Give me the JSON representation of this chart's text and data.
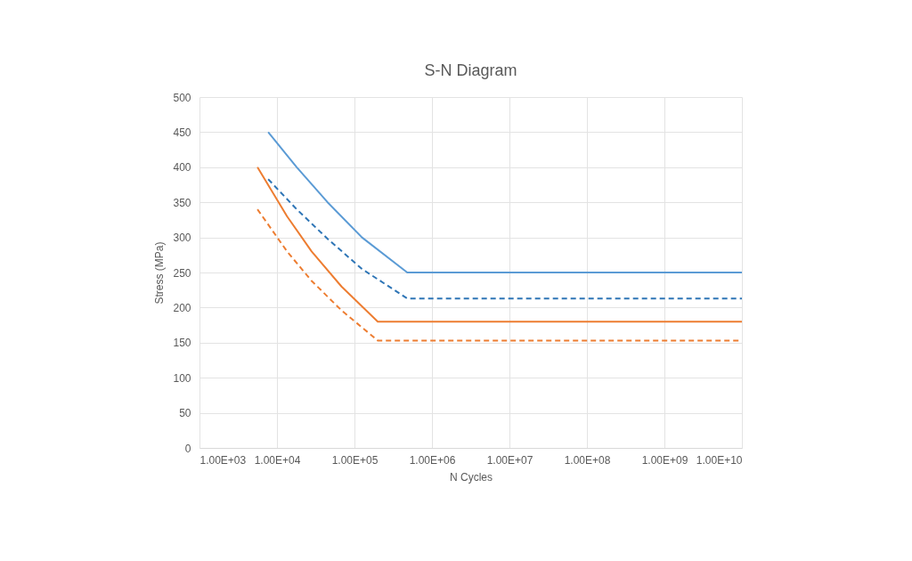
{
  "chart_data": {
    "type": "line",
    "title": "S-N Diagram",
    "xlabel": "N Cycles",
    "ylabel": "Stress (MPa)",
    "log": "x",
    "grid": true,
    "legend": false,
    "xlim": [
      1000,
      10000000000
    ],
    "xticks": [
      {
        "value": 1000,
        "label": "1.00E+03"
      },
      {
        "value": 10000,
        "label": "1.00E+04"
      },
      {
        "value": 100000,
        "label": "1.00E+05"
      },
      {
        "value": 1000000,
        "label": "1.00E+06"
      },
      {
        "value": 10000000,
        "label": "1.00E+07"
      },
      {
        "value": 100000000,
        "label": "1.00E+08"
      },
      {
        "value": 1000000000,
        "label": "1.00E+09"
      },
      {
        "value": 10000000000,
        "label": "1.00E+10"
      }
    ],
    "ylim": [
      0,
      500
    ],
    "yticks": [
      0,
      50,
      100,
      150,
      200,
      250,
      300,
      350,
      400,
      450,
      500
    ],
    "series": [
      {
        "color": "#5b9bd5",
        "line_style": "solid",
        "x": [
          7700,
          18000,
          45000,
          125000,
          480000,
          10000000000
        ],
        "values": [
          450,
          400,
          350,
          300,
          250,
          250
        ]
      },
      {
        "color": "#2e75b6",
        "line_style": "dashed",
        "x": [
          7700,
          18000,
          45000,
          125000,
          480000,
          10000000000
        ],
        "values": [
          383,
          340,
          298,
          255,
          213,
          213
        ]
      },
      {
        "color": "#ed7d31",
        "line_style": "solid",
        "x": [
          5600,
          13500,
          28000,
          68000,
          200000,
          10000000000
        ],
        "values": [
          400,
          330,
          280,
          230,
          180,
          180
        ]
      },
      {
        "color": "#ed7d31",
        "line_style": "dashed",
        "x": [
          5600,
          13500,
          28000,
          68000,
          200000,
          10000000000
        ],
        "values": [
          340,
          280,
          238,
          196,
          153,
          153
        ]
      }
    ]
  }
}
